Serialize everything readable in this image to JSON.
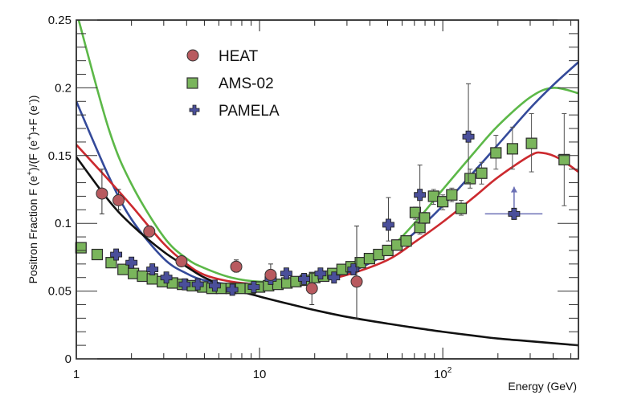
{
  "chart_data": {
    "type": "scatter",
    "title": "",
    "xlabel": "Energy (GeV)",
    "ylabel": "Positron Fraction F (e+)/(F (e+)+F (e-))",
    "xscale": "log",
    "xlim": [
      1,
      550
    ],
    "ylim": [
      0,
      0.25
    ],
    "x_tick_labels": [
      {
        "value": 1,
        "label": "1"
      },
      {
        "value": 10,
        "label": "10"
      },
      {
        "value": 100,
        "label": "10",
        "superscript": "2"
      }
    ],
    "y_tick_labels": [
      {
        "value": 0,
        "label": "0"
      },
      {
        "value": 0.05,
        "label": "0.05"
      },
      {
        "value": 0.1,
        "label": "0.1"
      },
      {
        "value": 0.15,
        "label": "0.15"
      },
      {
        "value": 0.2,
        "label": "0.2"
      },
      {
        "value": 0.25,
        "label": "0.25"
      }
    ],
    "grid": false,
    "legend_position": "top-left",
    "series": [
      {
        "name": "HEAT",
        "kind": "points",
        "marker": "circle",
        "color": "#b85a5f",
        "points": [
          {
            "x": 1.38,
            "y": 0.122,
            "lo": 0.107,
            "hi": 0.14
          },
          {
            "x": 1.7,
            "y": 0.117,
            "lo": 0.11,
            "hi": 0.125
          },
          {
            "x": 2.5,
            "y": 0.094,
            "lo": 0.09,
            "hi": 0.098
          },
          {
            "x": 3.75,
            "y": 0.072,
            "lo": 0.069,
            "hi": 0.075
          },
          {
            "x": 7.46,
            "y": 0.068,
            "lo": 0.064,
            "hi": 0.073
          },
          {
            "x": 11.5,
            "y": 0.062,
            "lo": 0.058,
            "hi": 0.07
          },
          {
            "x": 19.3,
            "y": 0.052,
            "lo": 0.04,
            "hi": 0.063
          },
          {
            "x": 33.9,
            "y": 0.057,
            "lo": 0.03,
            "hi": 0.098
          }
        ]
      },
      {
        "name": "AMS-02",
        "kind": "points",
        "marker": "square",
        "color": "#7ab55c",
        "points": [
          {
            "x": 1.06,
            "y": 0.082
          },
          {
            "x": 1.3,
            "y": 0.077
          },
          {
            "x": 1.55,
            "y": 0.071
          },
          {
            "x": 1.8,
            "y": 0.066
          },
          {
            "x": 2.05,
            "y": 0.063
          },
          {
            "x": 2.3,
            "y": 0.061
          },
          {
            "x": 2.6,
            "y": 0.059
          },
          {
            "x": 2.95,
            "y": 0.057
          },
          {
            "x": 3.35,
            "y": 0.056
          },
          {
            "x": 3.8,
            "y": 0.055
          },
          {
            "x": 4.3,
            "y": 0.054
          },
          {
            "x": 4.9,
            "y": 0.053
          },
          {
            "x": 5.5,
            "y": 0.052
          },
          {
            "x": 6.2,
            "y": 0.052
          },
          {
            "x": 7.0,
            "y": 0.052
          },
          {
            "x": 7.9,
            "y": 0.052
          },
          {
            "x": 8.9,
            "y": 0.052
          },
          {
            "x": 10.0,
            "y": 0.053
          },
          {
            "x": 11.2,
            "y": 0.054
          },
          {
            "x": 12.6,
            "y": 0.055
          },
          {
            "x": 14.1,
            "y": 0.056
          },
          {
            "x": 15.8,
            "y": 0.057
          },
          {
            "x": 17.8,
            "y": 0.058
          },
          {
            "x": 20.0,
            "y": 0.06
          },
          {
            "x": 22.4,
            "y": 0.061
          },
          {
            "x": 25.1,
            "y": 0.063
          },
          {
            "x": 28.2,
            "y": 0.066
          },
          {
            "x": 31.6,
            "y": 0.068
          },
          {
            "x": 35.5,
            "y": 0.071
          },
          {
            "x": 39.8,
            "y": 0.074
          },
          {
            "x": 44.7,
            "y": 0.077
          },
          {
            "x": 50.1,
            "y": 0.08
          },
          {
            "x": 56.2,
            "y": 0.084
          },
          {
            "x": 63.1,
            "y": 0.087
          },
          {
            "x": 70.8,
            "y": 0.108,
            "lo": 0.103,
            "hi": 0.112
          },
          {
            "x": 75.0,
            "y": 0.097,
            "lo": 0.092,
            "hi": 0.101
          },
          {
            "x": 79.4,
            "y": 0.104,
            "lo": 0.1,
            "hi": 0.108
          },
          {
            "x": 89.1,
            "y": 0.12,
            "lo": 0.114,
            "hi": 0.125
          },
          {
            "x": 100,
            "y": 0.116,
            "lo": 0.11,
            "hi": 0.121
          },
          {
            "x": 112,
            "y": 0.121,
            "lo": 0.116,
            "hi": 0.126
          },
          {
            "x": 126,
            "y": 0.111,
            "lo": 0.106,
            "hi": 0.117
          },
          {
            "x": 141,
            "y": 0.133,
            "lo": 0.126,
            "hi": 0.14
          },
          {
            "x": 163,
            "y": 0.137,
            "lo": 0.129,
            "hi": 0.145
          },
          {
            "x": 195,
            "y": 0.152,
            "lo": 0.14,
            "hi": 0.165
          },
          {
            "x": 240,
            "y": 0.155,
            "lo": 0.14,
            "hi": 0.171
          },
          {
            "x": 305,
            "y": 0.159,
            "lo": 0.138,
            "hi": 0.181
          },
          {
            "x": 460,
            "y": 0.147,
            "lo": 0.113,
            "hi": 0.181
          }
        ]
      },
      {
        "name": "PAMELA",
        "kind": "points",
        "marker": "cross",
        "color": "#4a4f9a",
        "points": [
          {
            "x": 1.65,
            "y": 0.077
          },
          {
            "x": 2.0,
            "y": 0.071
          },
          {
            "x": 2.6,
            "y": 0.066
          },
          {
            "x": 3.1,
            "y": 0.06
          },
          {
            "x": 3.9,
            "y": 0.055
          },
          {
            "x": 4.6,
            "y": 0.055
          },
          {
            "x": 5.7,
            "y": 0.054
          },
          {
            "x": 7.1,
            "y": 0.051
          },
          {
            "x": 9.3,
            "y": 0.053
          },
          {
            "x": 11.5,
            "y": 0.059
          },
          {
            "x": 14.0,
            "y": 0.063
          },
          {
            "x": 17.5,
            "y": 0.059
          },
          {
            "x": 21.5,
            "y": 0.063
          },
          {
            "x": 25.5,
            "y": 0.06
          },
          {
            "x": 32.5,
            "y": 0.066,
            "lo": 0.063,
            "hi": 0.07
          },
          {
            "x": 50.5,
            "y": 0.099,
            "lo": 0.087,
            "hi": 0.119
          },
          {
            "x": 75.0,
            "y": 0.121,
            "lo": 0.1,
            "hi": 0.143
          },
          {
            "x": 138,
            "y": 0.164,
            "lo": 0.13,
            "hi": 0.203
          },
          {
            "x": 245,
            "y": 0.107,
            "xlo": 170,
            "xhi": 350,
            "lower_limit": true,
            "arrow_to": 0.127
          }
        ]
      },
      {
        "name": "model-green",
        "kind": "line",
        "color": "#5cb848",
        "points": [
          [
            1.03,
            0.25
          ],
          [
            1.5,
            0.17
          ],
          [
            2,
            0.129
          ],
          [
            3,
            0.09
          ],
          [
            4,
            0.074
          ],
          [
            5,
            0.067
          ],
          [
            7,
            0.06
          ],
          [
            10,
            0.057
          ],
          [
            15,
            0.058
          ],
          [
            20,
            0.06
          ],
          [
            30,
            0.066
          ],
          [
            50,
            0.081
          ],
          [
            70,
            0.1
          ],
          [
            100,
            0.125
          ],
          [
            150,
            0.153
          ],
          [
            200,
            0.172
          ],
          [
            300,
            0.193
          ],
          [
            400,
            0.2
          ],
          [
            550,
            0.196
          ]
        ]
      },
      {
        "name": "model-blue",
        "kind": "line",
        "color": "#344a9a",
        "points": [
          [
            1,
            0.19
          ],
          [
            1.5,
            0.135
          ],
          [
            2,
            0.103
          ],
          [
            3,
            0.074
          ],
          [
            4,
            0.063
          ],
          [
            5,
            0.058
          ],
          [
            7,
            0.055
          ],
          [
            10,
            0.055
          ],
          [
            15,
            0.056
          ],
          [
            20,
            0.058
          ],
          [
            30,
            0.063
          ],
          [
            50,
            0.078
          ],
          [
            70,
            0.093
          ],
          [
            100,
            0.113
          ],
          [
            150,
            0.139
          ],
          [
            200,
            0.158
          ],
          [
            300,
            0.185
          ],
          [
            400,
            0.202
          ],
          [
            550,
            0.219
          ]
        ]
      },
      {
        "name": "model-red",
        "kind": "line",
        "color": "#cc2a2f",
        "points": [
          [
            1,
            0.158
          ],
          [
            1.5,
            0.132
          ],
          [
            2,
            0.113
          ],
          [
            3,
            0.085
          ],
          [
            4,
            0.07
          ],
          [
            5,
            0.062
          ],
          [
            7,
            0.057
          ],
          [
            10,
            0.055
          ],
          [
            15,
            0.055
          ],
          [
            20,
            0.057
          ],
          [
            30,
            0.062
          ],
          [
            50,
            0.073
          ],
          [
            70,
            0.086
          ],
          [
            100,
            0.101
          ],
          [
            150,
            0.12
          ],
          [
            200,
            0.134
          ],
          [
            300,
            0.15
          ],
          [
            350,
            0.152
          ],
          [
            430,
            0.148
          ],
          [
            550,
            0.138
          ]
        ]
      },
      {
        "name": "model-black",
        "kind": "line",
        "color": "#111111",
        "points": [
          [
            1,
            0.149
          ],
          [
            1.5,
            0.117
          ],
          [
            2,
            0.099
          ],
          [
            3,
            0.079
          ],
          [
            4,
            0.068
          ],
          [
            5,
            0.06
          ],
          [
            7,
            0.052
          ],
          [
            10,
            0.046
          ],
          [
            15,
            0.04
          ],
          [
            20,
            0.036
          ],
          [
            30,
            0.031
          ],
          [
            50,
            0.026
          ],
          [
            70,
            0.023
          ],
          [
            100,
            0.02
          ],
          [
            150,
            0.017
          ],
          [
            200,
            0.015
          ],
          [
            300,
            0.013
          ],
          [
            550,
            0.01
          ]
        ]
      }
    ]
  }
}
